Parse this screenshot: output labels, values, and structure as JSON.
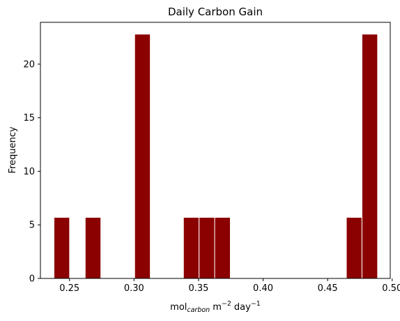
{
  "chart_data": {
    "type": "bar",
    "title": "Daily Carbon Gain",
    "xlabel": {
      "base": "mol",
      "sub": "carbon",
      "unit1": "m",
      "exp1": "−2",
      "unit2": "day",
      "exp2": "−1"
    },
    "ylabel": "Frequency",
    "xlim": [
      0.2275,
      0.4985
    ],
    "ylim": [
      0,
      23.9
    ],
    "xticks": [
      0.25,
      0.3,
      0.35,
      0.4,
      0.45,
      0.5
    ],
    "xtick_labels": [
      "0.25",
      "0.30",
      "0.35",
      "0.40",
      "0.45",
      "0.50"
    ],
    "yticks": [
      0,
      5,
      10,
      15,
      20
    ],
    "ytick_labels": [
      "0",
      "5",
      "10",
      "15",
      "20"
    ],
    "bar_color": "#8b0000",
    "edge_color": "#ffffff",
    "grid": false,
    "bins": [
      {
        "x0": 0.238,
        "x1": 0.2501,
        "value": 5.7
      },
      {
        "x0": 0.2622,
        "x1": 0.2743,
        "value": 5.7
      },
      {
        "x0": 0.3005,
        "x1": 0.3126,
        "value": 22.8
      },
      {
        "x0": 0.3383,
        "x1": 0.3504,
        "value": 5.7
      },
      {
        "x0": 0.3504,
        "x1": 0.3625,
        "value": 5.7
      },
      {
        "x0": 0.3625,
        "x1": 0.3746,
        "value": 5.7
      },
      {
        "x0": 0.4645,
        "x1": 0.4766,
        "value": 5.7
      },
      {
        "x0": 0.4766,
        "x1": 0.4887,
        "value": 22.8
      }
    ]
  }
}
